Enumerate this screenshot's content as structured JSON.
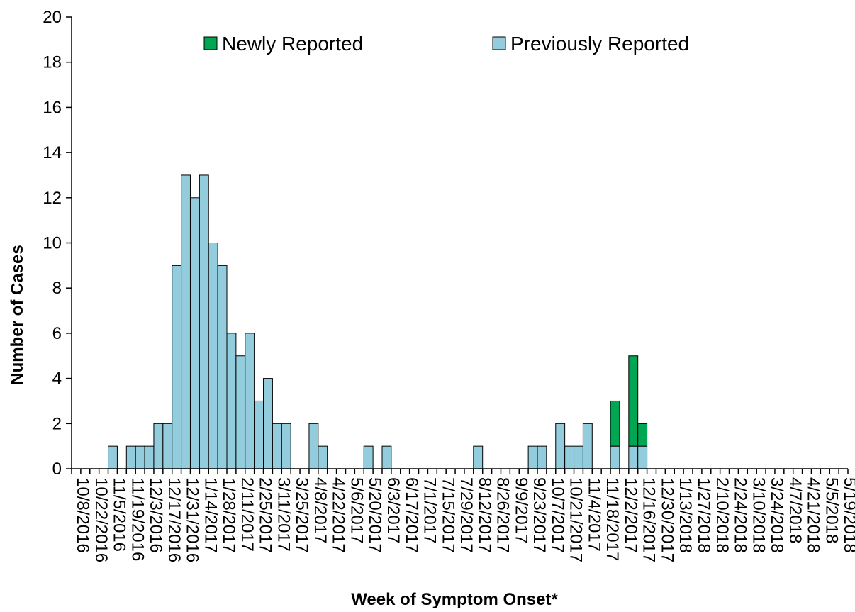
{
  "chart_data": {
    "type": "bar",
    "stacked": true,
    "title": "",
    "xlabel": "Week of Symptom Onset*",
    "ylabel": "Number of Cases",
    "ylim": [
      0,
      20
    ],
    "yticks": [
      0,
      2,
      4,
      6,
      8,
      10,
      12,
      14,
      16,
      18,
      20
    ],
    "grid": false,
    "legend": {
      "position": "top",
      "entries": [
        "Newly Reported",
        "Previously Reported"
      ]
    },
    "colors": {
      "Newly Reported": "#00A651",
      "Previously Reported": "#93CDDD",
      "edge": "#000000"
    },
    "categories": [
      "10/8/2016",
      "10/15/2016",
      "10/22/2016",
      "10/29/2016",
      "11/5/2016",
      "11/12/2016",
      "11/19/2016",
      "11/26/2016",
      "12/3/2016",
      "12/10/2016",
      "12/17/2016",
      "12/24/2016",
      "12/31/2016",
      "1/7/2017",
      "1/14/2017",
      "1/21/2017",
      "1/28/2017",
      "2/4/2017",
      "2/11/2017",
      "2/18/2017",
      "2/25/2017",
      "3/4/2017",
      "3/11/2017",
      "3/18/2017",
      "3/25/2017",
      "4/1/2017",
      "4/8/2017",
      "4/15/2017",
      "4/22/2017",
      "4/29/2017",
      "5/6/2017",
      "5/13/2017",
      "5/20/2017",
      "5/27/2017",
      "6/3/2017",
      "6/10/2017",
      "6/17/2017",
      "6/24/2017",
      "7/1/2017",
      "7/8/2017",
      "7/15/2017",
      "7/22/2017",
      "7/29/2017",
      "8/5/2017",
      "8/12/2017",
      "8/19/2017",
      "8/26/2017",
      "9/2/2017",
      "9/9/2017",
      "9/16/2017",
      "9/23/2017",
      "9/30/2017",
      "10/7/2017",
      "10/14/2017",
      "10/21/2017",
      "10/28/2017",
      "11/4/2017",
      "11/11/2017",
      "11/18/2017",
      "11/25/2017",
      "12/2/2017",
      "12/9/2017",
      "12/16/2017",
      "12/23/2017",
      "12/30/2017",
      "1/6/2018",
      "1/13/2018",
      "1/20/2018",
      "1/27/2018",
      "2/3/2018",
      "2/10/2018",
      "2/17/2018",
      "2/24/2018",
      "3/3/2018",
      "3/10/2018",
      "3/17/2018",
      "3/24/2018",
      "3/31/2018",
      "4/7/2018",
      "4/14/2018",
      "4/21/2018",
      "4/28/2018",
      "5/5/2018",
      "5/12/2018",
      "5/19/2018"
    ],
    "tick_labels": [
      "10/8/2016",
      "10/22/2016",
      "11/5/2016",
      "11/19/2016",
      "12/3/2016",
      "12/17/2016",
      "12/31/2016",
      "1/14/2017",
      "1/28/2017",
      "2/11/2017",
      "2/25/2017",
      "3/11/2017",
      "3/25/2017",
      "4/8/2017",
      "4/22/2017",
      "5/6/2017",
      "5/20/2017",
      "6/3/2017",
      "6/17/2017",
      "7/1/2017",
      "7/15/2017",
      "7/29/2017",
      "8/12/2017",
      "8/26/2017",
      "9/9/2017",
      "9/23/2017",
      "10/7/2017",
      "10/21/2017",
      "11/4/2017",
      "11/18/2017",
      "12/2/2017",
      "12/16/2017",
      "12/30/2017",
      "1/13/2018",
      "1/27/2018",
      "2/10/2018",
      "2/24/2018",
      "3/10/2018",
      "3/24/2018",
      "4/7/2018",
      "4/21/2018",
      "5/5/2018",
      "5/19/2018"
    ],
    "series": [
      {
        "name": "Previously Reported",
        "values": [
          0,
          0,
          0,
          0,
          1,
          0,
          1,
          1,
          1,
          2,
          2,
          9,
          13,
          12,
          13,
          10,
          9,
          6,
          5,
          6,
          3,
          4,
          2,
          2,
          0,
          0,
          2,
          1,
          0,
          0,
          0,
          0,
          1,
          0,
          1,
          0,
          0,
          0,
          0,
          0,
          0,
          0,
          0,
          0,
          1,
          0,
          0,
          0,
          0,
          0,
          1,
          1,
          0,
          2,
          1,
          1,
          2,
          0,
          0,
          1,
          0,
          1,
          1,
          0,
          0,
          0,
          0,
          0,
          0,
          0,
          0,
          0,
          0,
          0,
          0,
          0,
          0,
          0,
          0,
          0,
          0,
          0,
          0,
          0,
          0
        ]
      },
      {
        "name": "Newly Reported",
        "values": [
          0,
          0,
          0,
          0,
          0,
          0,
          0,
          0,
          0,
          0,
          0,
          0,
          0,
          0,
          0,
          0,
          0,
          0,
          0,
          0,
          0,
          0,
          0,
          0,
          0,
          0,
          0,
          0,
          0,
          0,
          0,
          0,
          0,
          0,
          0,
          0,
          0,
          0,
          0,
          0,
          0,
          0,
          0,
          0,
          0,
          0,
          0,
          0,
          0,
          0,
          0,
          0,
          0,
          0,
          0,
          0,
          0,
          0,
          0,
          2,
          0,
          4,
          1,
          0,
          0,
          0,
          0,
          0,
          0,
          0,
          0,
          0,
          0,
          0,
          0,
          0,
          0,
          0,
          0,
          0,
          0,
          0,
          0,
          0,
          0
        ]
      }
    ]
  }
}
